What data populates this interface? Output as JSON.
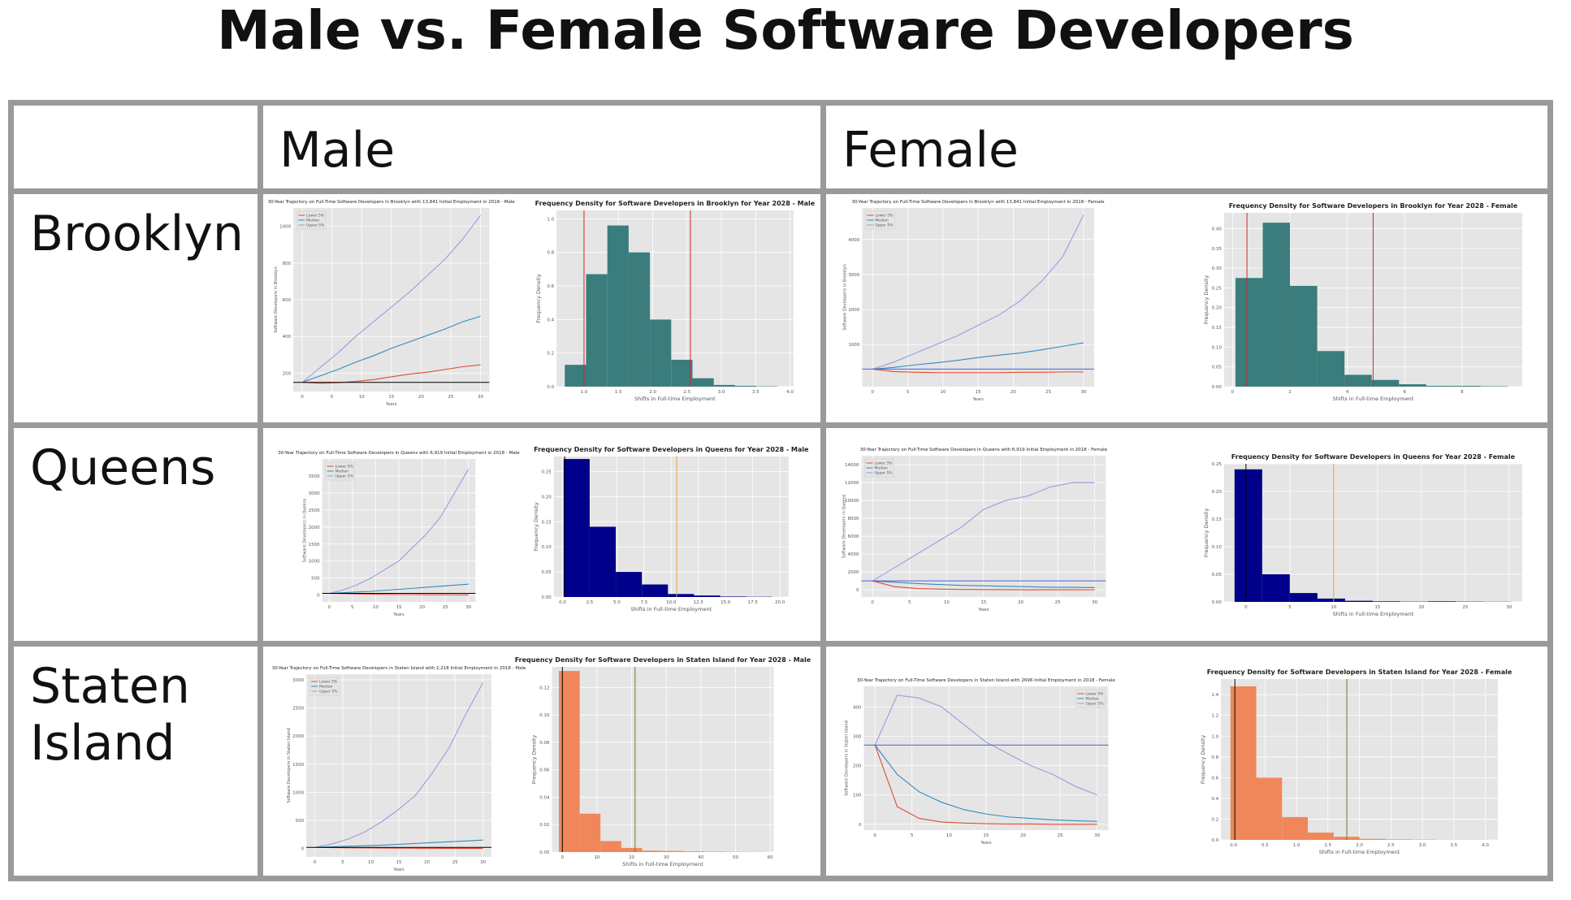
{
  "title": "Male vs. Female Software Developers",
  "columns": [
    "Male",
    "Female"
  ],
  "rows": [
    "Brooklyn",
    "Queens",
    "Staten Island"
  ],
  "chart_data": [
    {
      "type": "line",
      "title": "30-Year Trajectory on Full-Time Software Developers in Brooklyn with 13,841 Initial Employment in 2018 - Male",
      "xlabel": "Years",
      "ylabel": "Software Developers in Brooklyn",
      "x": [
        0,
        3,
        6,
        9,
        12,
        15,
        18,
        21,
        24,
        27,
        30
      ],
      "xlim": [
        -1.5,
        31.5
      ],
      "xticks": [
        0,
        5,
        10,
        15,
        20,
        25,
        30
      ],
      "ylim": [
        100,
        1100
      ],
      "yticks": [
        200,
        400,
        600,
        800,
        1000
      ],
      "grid": true,
      "legend": "upper left",
      "hline": {
        "value": 150,
        "color": "#000000"
      },
      "series": [
        {
          "name": "Lower 5%",
          "color": "#e24a33",
          "values": [
            150,
            145,
            148,
            155,
            165,
            180,
            195,
            205,
            220,
            235,
            245
          ]
        },
        {
          "name": "Median",
          "color": "#348abd",
          "values": [
            150,
            185,
            220,
            260,
            295,
            335,
            370,
            405,
            440,
            480,
            510
          ]
        },
        {
          "name": "Upper 5%",
          "color": "#9b9be0",
          "values": [
            150,
            230,
            310,
            400,
            480,
            560,
            640,
            730,
            820,
            930,
            1060
          ]
        }
      ]
    },
    {
      "type": "histogram",
      "title": "Frequency Density for Software Developers in Brooklyn for Year 2028 - Male",
      "xlabel": "Shifts in Full-time Employment",
      "ylabel": "Frequency Density",
      "color": "#3a7d7c",
      "bins": [
        0.72,
        1.03,
        1.34,
        1.65,
        1.96,
        2.27,
        2.58,
        2.89,
        3.2,
        3.51,
        3.82
      ],
      "values": [
        0.13,
        0.67,
        0.96,
        0.8,
        0.4,
        0.16,
        0.05,
        0.01,
        0.005,
        0.002
      ],
      "xlim": [
        0.6,
        4.05
      ],
      "xticks": [
        {
          "value": 1,
          "label": "1.0"
        },
        1.5,
        {
          "value": 2,
          "label": "2.0"
        },
        2.5,
        {
          "value": 3,
          "label": "3.0"
        },
        3.5,
        {
          "value": 4,
          "label": "4.0"
        }
      ],
      "ylim": [
        0,
        1.05
      ],
      "yticks": [
        {
          "value": 0,
          "label": "0.0"
        },
        0.2,
        0.4,
        0.6,
        0.8,
        {
          "value": 1,
          "label": "1.0"
        }
      ],
      "grid": true,
      "vlines": [
        {
          "value": 1.0,
          "color": "#d62728"
        },
        {
          "value": 2.55,
          "color": "#d62728"
        }
      ]
    },
    {
      "type": "line",
      "title": "30-Year Trajectory on Full-Time Software Developers in Brooklyn with 13,841 Initial Employment in 2018 - Female",
      "xlabel": "Years",
      "ylabel": "Software Developers in Brooklyn",
      "x": [
        0,
        3,
        6,
        9,
        12,
        15,
        18,
        21,
        24,
        27,
        30
      ],
      "xlim": [
        -1.5,
        31.5
      ],
      "xticks": [
        0,
        5,
        10,
        15,
        20,
        25,
        30
      ],
      "ylim": [
        -200,
        4900
      ],
      "yticks": [
        1000,
        2000,
        3000,
        4000
      ],
      "grid": true,
      "legend": "upper left",
      "hline": {
        "value": 300,
        "color": "#4a5fd9"
      },
      "series": [
        {
          "name": "Lower 5%",
          "color": "#e24a33",
          "values": [
            300,
            230,
            210,
            200,
            200,
            200,
            200,
            210,
            210,
            220,
            220
          ]
        },
        {
          "name": "Median",
          "color": "#348abd",
          "values": [
            300,
            350,
            420,
            480,
            550,
            630,
            700,
            760,
            850,
            950,
            1050
          ]
        },
        {
          "name": "Upper 5%",
          "color": "#9b9be0",
          "values": [
            300,
            500,
            750,
            1000,
            1250,
            1550,
            1850,
            2250,
            2800,
            3500,
            4700
          ]
        }
      ]
    },
    {
      "type": "histogram",
      "title": "Frequency Density for Software Developers in Brooklyn for Year 2028 - Female",
      "xlabel": "Shifts in Full-time Employment",
      "ylabel": "Frequency Density",
      "color": "#3a7d7c",
      "bins": [
        0.1,
        1.05,
        2.0,
        2.95,
        3.9,
        4.85,
        5.8,
        6.75,
        7.7,
        8.65,
        9.6
      ],
      "values": [
        0.275,
        0.415,
        0.255,
        0.09,
        0.03,
        0.017,
        0.006,
        0.002,
        0.002,
        0.001
      ],
      "xlim": [
        -0.3,
        10.1
      ],
      "xticks": [
        0,
        2,
        4,
        6,
        8
      ],
      "ylim": [
        0,
        0.44
      ],
      "yticks": [
        {
          "value": 0,
          "label": "0.00"
        },
        0.05,
        {
          "value": 0.1,
          "label": "0.10"
        },
        0.15,
        {
          "value": 0.2,
          "label": "0.20"
        },
        0.25,
        {
          "value": 0.3,
          "label": "0.30"
        },
        0.35,
        {
          "value": 0.4,
          "label": "0.40"
        }
      ],
      "grid": true,
      "vlines": [
        {
          "value": 0.5,
          "color": "#d62728"
        },
        {
          "value": 4.9,
          "color": "#d62728"
        }
      ]
    },
    {
      "type": "line",
      "title": "30-Year Trajectory on Full-Time Software Developers in Queens with 6,919 Initial Employment in 2018 - Male",
      "xlabel": "Years",
      "ylabel": "Software Developers in Queens",
      "x": [
        0,
        3,
        6,
        9,
        12,
        15,
        18,
        21,
        24,
        27,
        30
      ],
      "xlim": [
        -1.5,
        31.5
      ],
      "xticks": [
        0,
        5,
        10,
        15,
        20,
        25,
        30
      ],
      "ylim": [
        -200,
        4000
      ],
      "yticks": [
        0,
        500,
        1000,
        1500,
        2000,
        2500,
        3000,
        3500
      ],
      "grid": true,
      "legend": "upper left",
      "hline": {
        "value": 50,
        "color": "#000000"
      },
      "series": [
        {
          "name": "Lower 5%",
          "color": "#e24a33",
          "values": [
            50,
            40,
            30,
            25,
            20,
            15,
            12,
            10,
            8,
            6,
            5
          ]
        },
        {
          "name": "Median",
          "color": "#348abd",
          "values": [
            50,
            70,
            90,
            110,
            140,
            170,
            200,
            230,
            260,
            290,
            320
          ]
        },
        {
          "name": "Upper 5%",
          "color": "#9b9be0",
          "values": [
            50,
            150,
            300,
            500,
            750,
            1000,
            1400,
            1800,
            2300,
            3000,
            3700
          ]
        }
      ]
    },
    {
      "type": "histogram",
      "title": "Frequency Density for Software Developers in Queens for Year 2028 - Male",
      "xlabel": "Shifts in Full-time Employment",
      "ylabel": "Frequency Density",
      "color": "#00008b",
      "bins": [
        0.1,
        2.5,
        4.9,
        7.3,
        9.7,
        12.1,
        14.5,
        16.9,
        19.3
      ],
      "values": [
        0.275,
        0.14,
        0.05,
        0.025,
        0.006,
        0.003,
        0.001,
        0.0005
      ],
      "xlim": [
        -0.8,
        20.8
      ],
      "xticks": [
        {
          "value": 0,
          "label": "0.0"
        },
        2.5,
        {
          "value": 5,
          "label": "5.0"
        },
        7.5,
        {
          "value": 10,
          "label": "10.0"
        },
        12.5,
        {
          "value": 15,
          "label": "15.0"
        },
        17.5,
        {
          "value": 20,
          "label": "20.0"
        }
      ],
      "ylim": [
        0,
        0.28
      ],
      "yticks": [
        {
          "value": 0,
          "label": "0.00"
        },
        0.05,
        {
          "value": 0.1,
          "label": "0.10"
        },
        0.15,
        {
          "value": 0.2,
          "label": "0.20"
        },
        0.25
      ],
      "grid": true,
      "vlines": [
        {
          "value": 0.2,
          "color": "#000000"
        },
        {
          "value": 10.5,
          "color": "#e8a23c"
        }
      ]
    },
    {
      "type": "line",
      "title": "30-Year Trajectory on Full-Time Software Developers in Queens with 6,919 Initial Employment in 2018 - Female",
      "xlabel": "Years",
      "ylabel": "Software Developers in Queens",
      "x": [
        0,
        3,
        6,
        9,
        12,
        15,
        18,
        21,
        24,
        27,
        30
      ],
      "xlim": [
        -1.5,
        31.5
      ],
      "xticks": [
        0,
        5,
        10,
        15,
        20,
        25,
        30
      ],
      "ylim": [
        -800,
        15000
      ],
      "yticks": [
        0,
        2000,
        4000,
        6000,
        8000,
        10000,
        12000,
        14000
      ],
      "grid": true,
      "legend": "upper left",
      "hline": {
        "value": 1000,
        "color": "#4a5fd9"
      },
      "series": [
        {
          "name": "Lower 5%",
          "color": "#e24a33",
          "values": [
            1000,
            350,
            150,
            80,
            50,
            30,
            20,
            15,
            10,
            8,
            5
          ]
        },
        {
          "name": "Median",
          "color": "#348abd",
          "values": [
            1000,
            850,
            700,
            600,
            500,
            450,
            400,
            350,
            300,
            280,
            250
          ]
        },
        {
          "name": "Upper 5%",
          "color": "#9b9be0",
          "values": [
            1000,
            2500,
            4000,
            5500,
            7000,
            9000,
            10000,
            10500,
            11500,
            12000,
            12000
          ]
        }
      ]
    },
    {
      "type": "histogram",
      "title": "Frequency Density for Software Developers in Queens for Year 2028 - Female",
      "xlabel": "Shifts in Full-time Employment",
      "ylabel": "Frequency Density",
      "color": "#00008b",
      "bins": [
        -1.3,
        1.85,
        5.0,
        8.15,
        11.3,
        14.45,
        17.6,
        20.75,
        23.9,
        27.05,
        30.2
      ],
      "values": [
        0.24,
        0.05,
        0.016,
        0.006,
        0.002,
        0.001,
        0.0005,
        0.001,
        0.0005,
        0.0003
      ],
      "xlim": [
        -2.5,
        31.5
      ],
      "xticks": [
        0,
        5,
        10,
        15,
        20,
        25,
        30
      ],
      "ylim": [
        0,
        0.25
      ],
      "yticks": [
        {
          "value": 0,
          "label": "0.00"
        },
        0.05,
        {
          "value": 0.1,
          "label": "0.10"
        },
        0.15,
        {
          "value": 0.2,
          "label": "0.20"
        },
        0.25
      ],
      "grid": true,
      "vlines": [
        {
          "value": 0,
          "color": "#000000"
        },
        {
          "value": 10,
          "color": "#e8a23c"
        }
      ]
    },
    {
      "type": "line",
      "title": "30-Year Trajectory on Full-Time Software Developers in Staten Island with 2,218 Initial Employment in 2018 - Male",
      "xlabel": "Years",
      "ylabel": "Software Developers in Staten Island",
      "x": [
        0,
        3,
        6,
        9,
        12,
        15,
        18,
        21,
        24,
        27,
        30
      ],
      "xlim": [
        -1.5,
        31.5
      ],
      "xticks": [
        0,
        5,
        10,
        15,
        20,
        25,
        30
      ],
      "ylim": [
        -150,
        3100
      ],
      "yticks": [
        0,
        500,
        1000,
        1500,
        2000,
        2500,
        3000
      ],
      "grid": true,
      "legend": "upper left",
      "hline": {
        "value": 20,
        "color": "#000000"
      },
      "series": [
        {
          "name": "Lower 5%",
          "color": "#e24a33",
          "values": [
            20,
            15,
            12,
            10,
            8,
            6,
            5,
            4,
            3,
            2,
            2
          ]
        },
        {
          "name": "Median",
          "color": "#348abd",
          "values": [
            20,
            30,
            40,
            50,
            60,
            75,
            90,
            105,
            120,
            135,
            150
          ]
        },
        {
          "name": "Upper 5%",
          "color": "#9b9be0",
          "values": [
            20,
            80,
            170,
            300,
            480,
            700,
            950,
            1350,
            1800,
            2400,
            2950
          ]
        }
      ]
    },
    {
      "type": "histogram",
      "title": "Frequency Density for Software Developers in Staten Island for Year 2028 - Male",
      "xlabel": "Shifts in Full-time Employment",
      "ylabel": "Frequency Density",
      "color": "#f0875a",
      "bins": [
        -1,
        5,
        11,
        17,
        23,
        29,
        35,
        41,
        47,
        53,
        59
      ],
      "values": [
        0.132,
        0.028,
        0.008,
        0.003,
        0.001,
        0.0008,
        0.0005,
        0.0003,
        0.0002,
        0.0001
      ],
      "xlim": [
        -3,
        61
      ],
      "xticks": [
        0,
        10,
        20,
        30,
        40,
        50,
        60
      ],
      "ylim": [
        0,
        0.135
      ],
      "yticks": [
        {
          "value": 0,
          "label": "0.00"
        },
        0.02,
        0.04,
        0.06,
        0.08,
        {
          "value": 0.1,
          "label": "0.10"
        },
        0.12
      ],
      "grid": true,
      "vlines": [
        {
          "value": 0,
          "color": "#000000"
        },
        {
          "value": 21,
          "color": "#6b7a2a"
        }
      ]
    },
    {
      "type": "line",
      "title": "30-Year Trajectory on Full-Time Software Developers in Staten Island with 2696 Initial Employment in 2018 - Female",
      "xlabel": "Years",
      "ylabel": "Software Developers in Staten Island",
      "x": [
        0,
        3,
        6,
        9,
        12,
        15,
        18,
        21,
        24,
        27,
        30
      ],
      "xlim": [
        -1.5,
        31.5
      ],
      "xticks": [
        0,
        5,
        10,
        15,
        20,
        25,
        30
      ],
      "ylim": [
        -20,
        470
      ],
      "yticks": [
        0,
        100,
        200,
        300,
        400
      ],
      "grid": true,
      "legend": "upper right",
      "hline": {
        "value": 270,
        "color": "#4a5fd9"
      },
      "series": [
        {
          "name": "Lower 5%",
          "color": "#e24a33",
          "values": [
            270,
            60,
            20,
            8,
            4,
            2,
            1,
            1,
            0,
            0,
            0
          ]
        },
        {
          "name": "Median",
          "color": "#348abd",
          "values": [
            270,
            170,
            110,
            75,
            50,
            35,
            25,
            20,
            15,
            12,
            10
          ]
        },
        {
          "name": "Upper 5%",
          "color": "#9b9be0",
          "values": [
            270,
            440,
            430,
            400,
            340,
            280,
            240,
            200,
            170,
            130,
            100
          ]
        }
      ]
    },
    {
      "type": "histogram",
      "title": "Frequency Density for Software Developers in Staten Island for Year 2028 - Female",
      "xlabel": "Shifts in Full-time Employment",
      "ylabel": "Frequency Density",
      "color": "#f0875a",
      "bins": [
        -0.05,
        0.36,
        0.77,
        1.18,
        1.59,
        2.0,
        2.41,
        2.82,
        3.23,
        3.64,
        4.05
      ],
      "values": [
        1.48,
        0.6,
        0.22,
        0.07,
        0.03,
        0.01,
        0.005,
        0.003,
        0.001,
        0.001
      ],
      "xlim": [
        -0.2,
        4.2
      ],
      "xticks": [
        {
          "value": 0,
          "label": "0.0"
        },
        0.5,
        {
          "value": 1,
          "label": "1.0"
        },
        1.5,
        {
          "value": 2,
          "label": "2.0"
        },
        2.5,
        {
          "value": 3,
          "label": "3.0"
        },
        3.5,
        {
          "value": 4,
          "label": "4.0"
        }
      ],
      "ylim": [
        0,
        1.55
      ],
      "yticks": [
        {
          "value": 0,
          "label": "0.0"
        },
        0.2,
        0.4,
        0.6,
        0.8,
        {
          "value": 1,
          "label": "1.0"
        },
        1.2,
        1.4
      ],
      "grid": true,
      "vlines": [
        {
          "value": 0.02,
          "color": "#000000"
        },
        {
          "value": 1.8,
          "color": "#6b7a2a"
        }
      ]
    }
  ]
}
